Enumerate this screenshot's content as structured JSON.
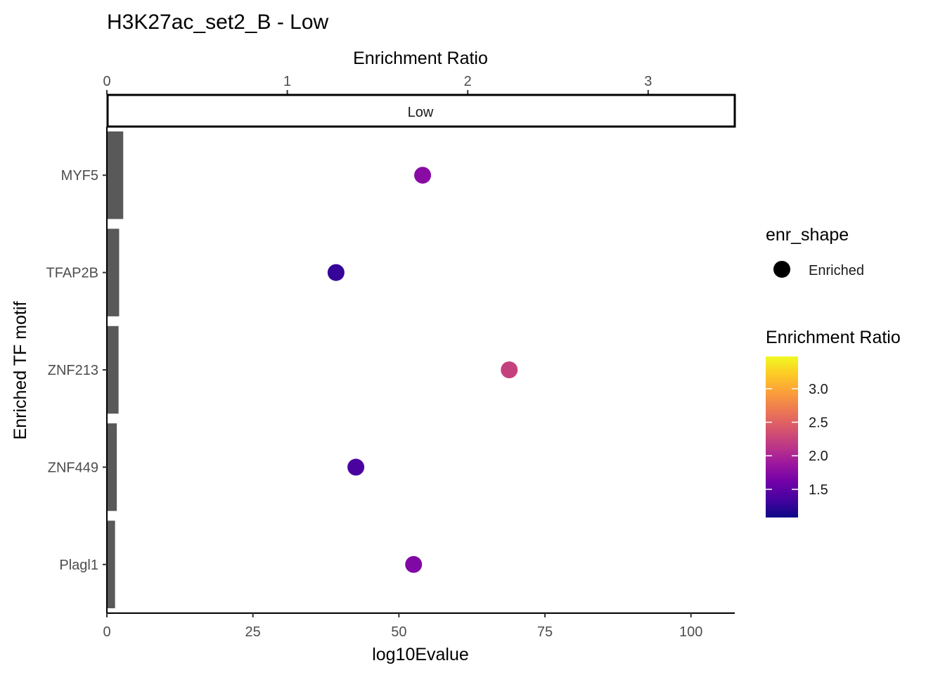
{
  "chart_data": {
    "type": "bar+scatter",
    "title": "H3K27ac_set2_B - Low",
    "facet_label": "Low",
    "xlabel": "log10Evalue",
    "x2label": "Enrichment Ratio",
    "ylabel": "Enriched TF motif",
    "categories": [
      "MYF5",
      "TFAP2B",
      "ZNF213",
      "ZNF449",
      "Plagl1"
    ],
    "bar_values": [
      2.8,
      2.1,
      2.0,
      1.7,
      1.4
    ],
    "points_enrichment_ratio": [
      1.75,
      1.27,
      2.23,
      1.38,
      1.7
    ],
    "xlim": [
      0,
      107.5
    ],
    "x_ticks": [
      0,
      25,
      50,
      75,
      100
    ],
    "x2lim": [
      0,
      3.48
    ],
    "x2_ticks": [
      0,
      1,
      2,
      3
    ],
    "bar_color": "#595959",
    "legend_shape": {
      "title": "enr_shape",
      "entries": [
        "Enriched"
      ]
    },
    "legend_color": {
      "title": "Enrichment Ratio",
      "min": 1.08,
      "max": 3.48,
      "ticks": [
        "1.5",
        "2.0",
        "2.5",
        "3.0"
      ],
      "colors": [
        "#0d0887",
        "#46039f",
        "#7201a8",
        "#9c179e",
        "#bd3786",
        "#d8576b",
        "#ed7953",
        "#fb9f3a",
        "#fdca26",
        "#f0f921"
      ]
    }
  }
}
